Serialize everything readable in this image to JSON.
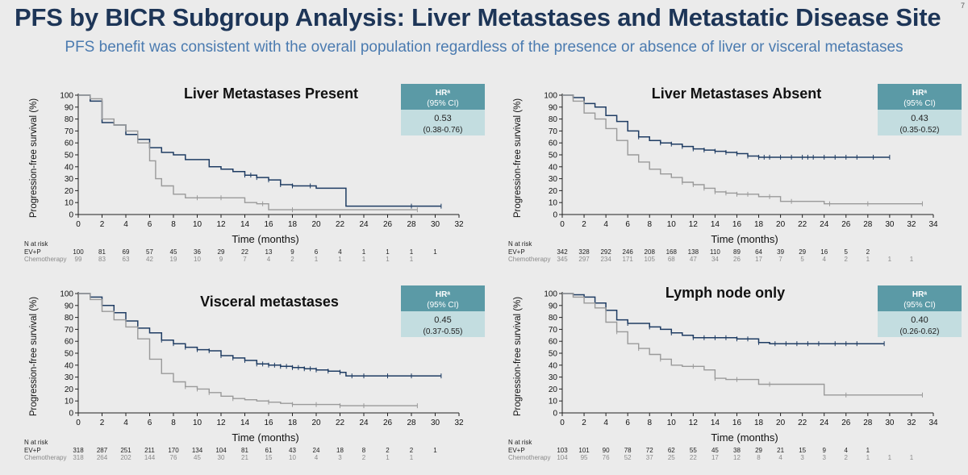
{
  "slide": {
    "title": "PFS by BICR Subgroup Analysis: Liver Metastases and Metastatic Disease Site",
    "subtitle": "PFS benefit was consistent with the overall population regardless of the presence or absence of liver or visceral metastases",
    "page_number": "7"
  },
  "colors": {
    "ev_p": "#1f3c63",
    "chemo": "#9a9a9a",
    "hr_header": "#5b9aa6",
    "hr_body": "#c3dde0",
    "title": "#1d3557",
    "subtitle": "#4b7bb0"
  },
  "chart_data": [
    {
      "type": "line",
      "title": "Liver Metastases Present",
      "xlabel": "Time (months)",
      "ylabel": "Progression-free survival (%)",
      "xlim": [
        0,
        32
      ],
      "ylim": [
        0,
        100
      ],
      "xticks": [
        0,
        2,
        4,
        6,
        8,
        10,
        12,
        14,
        16,
        18,
        20,
        22,
        24,
        26,
        28,
        30,
        32
      ],
      "yticks": [
        0,
        10,
        20,
        30,
        40,
        50,
        60,
        70,
        80,
        90,
        100
      ],
      "hr": {
        "header": "HRᵃ",
        "header2": "(95% CI)",
        "value": "0.53",
        "ci": "(0.38-0.76)"
      },
      "series": [
        {
          "name": "EV+P",
          "x": [
            0,
            1,
            2,
            3,
            4,
            5,
            6,
            7,
            8,
            9,
            10,
            11,
            12,
            13,
            14,
            15,
            16,
            17,
            18,
            19,
            20,
            21,
            22,
            22.5,
            24,
            26,
            28,
            30.5
          ],
          "y": [
            100,
            95,
            77,
            75,
            67,
            63,
            56,
            52,
            50,
            46,
            46,
            40,
            38,
            36,
            33,
            31,
            29,
            25,
            24,
            24,
            22,
            22,
            22,
            7,
            7,
            7,
            7,
            7
          ],
          "censor_x": [
            14,
            14.5,
            15,
            16,
            17,
            18,
            19.5,
            28,
            30.5
          ]
        },
        {
          "name": "Chemotherapy",
          "x": [
            0,
            1,
            2,
            3,
            4,
            5,
            6,
            6.5,
            7,
            8,
            9,
            10,
            12,
            14,
            15,
            16,
            18,
            20,
            22,
            24,
            26,
            28.5
          ],
          "y": [
            100,
            97,
            80,
            75,
            70,
            60,
            45,
            30,
            24,
            17,
            14,
            14,
            14,
            10,
            9,
            4,
            4,
            4,
            4,
            4,
            4,
            4
          ],
          "censor_x": [
            10,
            12,
            15.5,
            18,
            28.5
          ]
        }
      ],
      "risk": {
        "label": "N at risk",
        "rows": [
          {
            "name": "EV+P",
            "values": [
              "100",
              "81",
              "69",
              "57",
              "45",
              "36",
              "29",
              "22",
              "13",
              "9",
              "6",
              "4",
              "1",
              "1",
              "1",
              "1"
            ]
          },
          {
            "name": "Chemotherapy",
            "values": [
              "99",
              "83",
              "63",
              "42",
              "19",
              "10",
              "9",
              "7",
              "4",
              "2",
              "1",
              "1",
              "1",
              "1",
              "1"
            ]
          }
        ]
      }
    },
    {
      "type": "line",
      "title": "Liver Metastases Absent",
      "xlabel": "Time (months)",
      "ylabel": "Progression-free survival (%)",
      "xlim": [
        0,
        34
      ],
      "ylim": [
        0,
        100
      ],
      "xticks": [
        0,
        2,
        4,
        6,
        8,
        10,
        12,
        14,
        16,
        18,
        20,
        22,
        24,
        26,
        28,
        30,
        32,
        34
      ],
      "yticks": [
        0,
        10,
        20,
        30,
        40,
        50,
        60,
        70,
        80,
        90,
        100
      ],
      "hr": {
        "header": "HRᵃ",
        "header2": "(95% CI)",
        "value": "0.43",
        "ci": "(0.35-0.52)"
      },
      "series": [
        {
          "name": "EV+P",
          "x": [
            0,
            1,
            2,
            3,
            4,
            5,
            6,
            7,
            8,
            9,
            10,
            11,
            12,
            13,
            14,
            15,
            16,
            17,
            18,
            20,
            22,
            24,
            26,
            28,
            30
          ],
          "y": [
            100,
            98,
            93,
            90,
            83,
            78,
            70,
            65,
            62,
            60,
            59,
            57,
            55,
            54,
            53,
            52,
            51,
            49,
            48,
            48,
            48,
            48,
            48,
            48,
            48
          ],
          "censor_x": [
            7,
            9,
            10,
            11,
            12,
            13,
            14,
            15,
            16,
            17,
            18,
            18.5,
            19,
            20,
            21,
            22,
            22.5,
            23,
            24,
            25,
            26,
            27,
            28.5,
            30
          ]
        },
        {
          "name": "Chemotherapy",
          "x": [
            0,
            1,
            2,
            3,
            4,
            5,
            6,
            7,
            8,
            9,
            10,
            11,
            12,
            13,
            14,
            15,
            16,
            18,
            20,
            22,
            24,
            26,
            28,
            30,
            33
          ],
          "y": [
            100,
            95,
            85,
            80,
            72,
            62,
            50,
            44,
            38,
            34,
            31,
            27,
            25,
            22,
            19,
            18,
            17,
            15,
            11,
            11,
            9,
            9,
            9,
            9,
            9
          ],
          "censor_x": [
            11,
            12,
            13,
            14,
            15,
            16,
            17,
            19,
            21,
            24.5,
            28,
            33
          ]
        }
      ],
      "risk": {
        "label": "N at risk",
        "rows": [
          {
            "name": "EV+P",
            "values": [
              "342",
              "328",
              "292",
              "246",
              "208",
              "168",
              "138",
              "110",
              "89",
              "64",
              "39",
              "29",
              "16",
              "5",
              "2"
            ]
          },
          {
            "name": "Chemotherapy",
            "values": [
              "345",
              "297",
              "234",
              "171",
              "105",
              "68",
              "47",
              "34",
              "26",
              "17",
              "7",
              "5",
              "4",
              "2",
              "1",
              "1",
              "1"
            ]
          }
        ]
      }
    },
    {
      "type": "line",
      "title": "Visceral metastases",
      "xlabel": "Time (months)",
      "ylabel": "Progression-free survival (%)",
      "xlim": [
        0,
        32
      ],
      "ylim": [
        0,
        100
      ],
      "xticks": [
        0,
        2,
        4,
        6,
        8,
        10,
        12,
        14,
        16,
        18,
        20,
        22,
        24,
        26,
        28,
        30,
        32
      ],
      "yticks": [
        0,
        10,
        20,
        30,
        40,
        50,
        60,
        70,
        80,
        90,
        100
      ],
      "hr": {
        "header": "HRᵃ",
        "header2": "(95% CI)",
        "value": "0.45",
        "ci": "(0.37-0.55)"
      },
      "series": [
        {
          "name": "EV+P",
          "x": [
            0,
            1,
            2,
            3,
            4,
            5,
            6,
            7,
            8,
            9,
            10,
            11,
            12,
            13,
            14,
            15,
            16,
            17,
            18,
            19,
            20,
            21,
            22,
            22.5,
            24,
            26,
            28,
            30.5
          ],
          "y": [
            100,
            97,
            90,
            84,
            77,
            71,
            67,
            61,
            58,
            55,
            53,
            52,
            48,
            46,
            44,
            41,
            40,
            39,
            38,
            37,
            36,
            35,
            34,
            31,
            31,
            31,
            31,
            31
          ],
          "censor_x": [
            7,
            8,
            9,
            10,
            11,
            12,
            13,
            14,
            15,
            15.5,
            16,
            16.5,
            17,
            17.5,
            18,
            18.5,
            19,
            19.5,
            20,
            21,
            22,
            23,
            24,
            26,
            28,
            30.5
          ]
        },
        {
          "name": "Chemotherapy",
          "x": [
            0,
            1,
            2,
            3,
            4,
            5,
            6,
            7,
            8,
            9,
            10,
            11,
            12,
            13,
            14,
            15,
            16,
            17,
            18,
            20,
            22,
            24,
            26,
            28.5
          ],
          "y": [
            100,
            95,
            85,
            78,
            72,
            62,
            45,
            33,
            26,
            22,
            20,
            17,
            14,
            12,
            11,
            10,
            9,
            8,
            7,
            7,
            6,
            6,
            6,
            6
          ],
          "censor_x": [
            9,
            10,
            11,
            13,
            16,
            18,
            20,
            22,
            24,
            28.5
          ]
        }
      ],
      "risk": {
        "label": "N at risk",
        "rows": [
          {
            "name": "EV+P",
            "values": [
              "318",
              "287",
              "251",
              "211",
              "170",
              "134",
              "104",
              "81",
              "61",
              "43",
              "24",
              "18",
              "8",
              "2",
              "2",
              "1"
            ]
          },
          {
            "name": "Chemotherapy",
            "values": [
              "318",
              "264",
              "202",
              "144",
              "76",
              "45",
              "30",
              "21",
              "15",
              "10",
              "4",
              "3",
              "2",
              "1",
              "1"
            ]
          }
        ]
      }
    },
    {
      "type": "line",
      "title": "Lymph node only",
      "xlabel": "Time (months)",
      "ylabel": "Progression-free survival (%)",
      "xlim": [
        0,
        34
      ],
      "ylim": [
        0,
        100
      ],
      "xticks": [
        0,
        2,
        4,
        6,
        8,
        10,
        12,
        14,
        16,
        18,
        20,
        22,
        24,
        26,
        28,
        30,
        32,
        34
      ],
      "yticks": [
        0,
        10,
        20,
        30,
        40,
        50,
        60,
        70,
        80,
        90,
        100
      ],
      "hr": {
        "header": "HRᵃ",
        "header2": "(95% CI)",
        "value": "0.40",
        "ci": "(0.26-0.62)"
      },
      "series": [
        {
          "name": "EV+P",
          "x": [
            0,
            1,
            2,
            3,
            4,
            5,
            6,
            7,
            8,
            9,
            10,
            11,
            12,
            14,
            16,
            18,
            19,
            20,
            22,
            24,
            26,
            28,
            29.5
          ],
          "y": [
            100,
            99,
            97,
            92,
            86,
            78,
            75,
            75,
            72,
            70,
            67,
            65,
            63,
            63,
            62,
            59,
            58,
            58,
            58,
            58,
            58,
            58,
            58
          ],
          "censor_x": [
            4,
            6,
            8,
            10,
            12,
            13,
            14,
            15,
            16,
            17,
            18,
            19.5,
            20.5,
            21.5,
            22.5,
            23.5,
            25,
            26,
            27,
            29.5
          ]
        },
        {
          "name": "Chemotherapy",
          "x": [
            0,
            1,
            2,
            3,
            4,
            5,
            6,
            7,
            8,
            9,
            10,
            11,
            12,
            13,
            14,
            15,
            16,
            18,
            20,
            22,
            24,
            26,
            28,
            30,
            33
          ],
          "y": [
            100,
            97,
            92,
            88,
            76,
            68,
            58,
            54,
            49,
            45,
            40,
            39,
            39,
            36,
            29,
            28,
            28,
            24,
            24,
            24,
            15,
            15,
            15,
            15,
            15
          ],
          "censor_x": [
            5,
            7,
            9,
            12,
            14,
            16,
            19,
            26,
            33
          ]
        }
      ],
      "risk": {
        "label": "N at risk",
        "rows": [
          {
            "name": "EV+P",
            "values": [
              "103",
              "101",
              "90",
              "78",
              "72",
              "62",
              "55",
              "45",
              "38",
              "29",
              "21",
              "15",
              "9",
              "4",
              "1"
            ]
          },
          {
            "name": "Chemotherapy",
            "values": [
              "104",
              "95",
              "76",
              "52",
              "37",
              "25",
              "22",
              "17",
              "12",
              "8",
              "4",
              "3",
              "3",
              "2",
              "1",
              "1",
              "1"
            ]
          }
        ]
      }
    }
  ]
}
